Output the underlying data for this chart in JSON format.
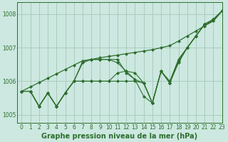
{
  "title": "Graphe pression niveau de la mer (hPa)",
  "background_color": "#cce8e0",
  "grid_color": "#aaccbb",
  "line_color": "#2d6e2d",
  "marker_color": "#2d6e2d",
  "xlim": [
    -0.5,
    23
  ],
  "ylim": [
    1004.75,
    1008.35
  ],
  "yticks": [
    1005,
    1006,
    1007,
    1008
  ],
  "xticks": [
    0,
    1,
    2,
    3,
    4,
    5,
    6,
    7,
    8,
    9,
    10,
    11,
    12,
    13,
    14,
    15,
    16,
    17,
    18,
    19,
    20,
    21,
    22,
    23
  ],
  "series": [
    [
      1005.7,
      1005.7,
      1005.25,
      1005.65,
      1005.25,
      1005.65,
      1006.0,
      1006.6,
      1006.65,
      1006.65,
      1006.65,
      1006.65,
      1006.25,
      1006.05,
      1005.95,
      1005.35,
      1006.3,
      1005.95,
      1006.6,
      1007.0,
      1007.35,
      1007.7,
      1007.8,
      1008.1
    ],
    [
      1005.7,
      1005.7,
      1005.25,
      1005.65,
      1005.25,
      1005.65,
      1006.0,
      1006.0,
      1006.0,
      1006.0,
      1006.0,
      1006.25,
      1006.3,
      1006.25,
      1005.95,
      1005.35,
      1006.3,
      1006.0,
      1006.65,
      1007.0,
      1007.35,
      1007.7,
      1007.8,
      1008.1
    ],
    [
      1005.7,
      1005.7,
      1005.25,
      1005.65,
      1005.25,
      1005.65,
      1006.0,
      1006.55,
      1006.65,
      1006.65,
      1006.65,
      1006.55,
      1006.3,
      1006.05,
      1005.55,
      1005.35,
      1006.3,
      1005.95,
      1006.55,
      1007.0,
      1007.35,
      1007.7,
      1007.85,
      1008.1
    ],
    [
      1005.7,
      1005.7,
      1005.25,
      1005.65,
      1005.25,
      1005.65,
      1006.0,
      1006.0,
      1006.0,
      1006.0,
      1006.0,
      1006.0,
      1006.0,
      1006.0,
      1005.95,
      1005.35,
      1006.3,
      1005.95,
      1006.65,
      1007.0,
      1007.35,
      1007.7,
      1007.85,
      1008.1
    ]
  ],
  "trend_line": [
    1005.7,
    1005.83,
    1005.96,
    1006.09,
    1006.22,
    1006.35,
    1006.48,
    1006.61,
    1006.65,
    1006.7,
    1006.74,
    1006.78,
    1006.82,
    1006.86,
    1006.9,
    1006.94,
    1007.0,
    1007.06,
    1007.2,
    1007.35,
    1007.5,
    1007.65,
    1007.8,
    1008.1
  ]
}
